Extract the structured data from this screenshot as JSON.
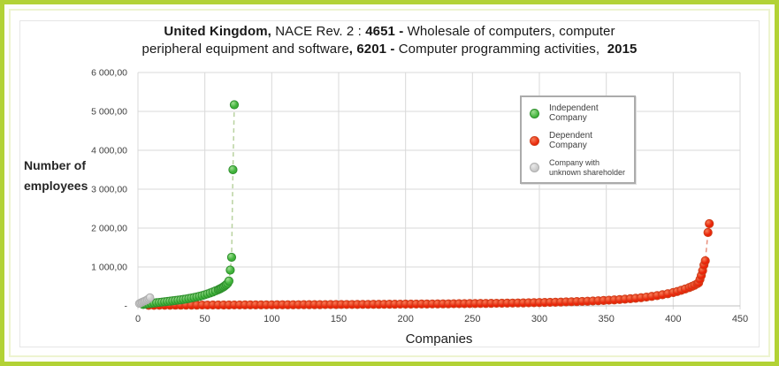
{
  "frame": {
    "border_color": "#b2d235"
  },
  "title": {
    "full": "United Kingdom, NACE Rev. 2 : 4651 - Wholesale of computers, computer peripheral equipment and software, 6201 - Computer programming activities,  2015",
    "line1": [
      {
        "text": "United Kingdom,",
        "bold": true
      },
      {
        "text": " NACE Rev. 2 : ",
        "bold": false
      },
      {
        "text": "4651 - ",
        "bold": true
      },
      {
        "text": "Wholesale of computers, computer",
        "bold": false
      }
    ],
    "line2": [
      {
        "text": "peripheral equipment and software",
        "bold": false
      },
      {
        "text": ", 6201 - ",
        "bold": true
      },
      {
        "text": "Computer programming activities, ",
        "bold": false
      },
      {
        "text": " 2015",
        "bold": true
      }
    ]
  },
  "legend": {
    "items": [
      {
        "label_lines": [
          "Independent Company"
        ],
        "color": "#3fb33a",
        "color_light": "#9fdd92",
        "border": "#2e8f2c",
        "small": false
      },
      {
        "label_lines": [
          "Dependent Company"
        ],
        "color": "#ea2408",
        "color_light": "#f67e58",
        "border": "#cf3f1c",
        "small": false
      },
      {
        "label_lines": [
          "Company with",
          "unknown shareholder"
        ],
        "color": "#c6c6c6",
        "color_light": "#e9e9e9",
        "border": "#aeaeae",
        "small": true
      }
    ]
  },
  "chart_data": {
    "type": "scatter",
    "title": "United Kingdom, NACE Rev. 2 : 4651 - Wholesale of computers, computer peripheral equipment and software, 6201 - Computer programming activities, 2015",
    "xlabel": "Companies",
    "ylabel": "Number of employees",
    "xlim": [
      0,
      450
    ],
    "ylim": [
      0,
      6000
    ],
    "grid": true,
    "legend_position": "top-right-inside",
    "x_ticks": [
      0,
      50,
      100,
      150,
      200,
      250,
      300,
      350,
      400,
      450
    ],
    "y_ticks": [
      {
        "value": 0,
        "label": "-"
      },
      {
        "value": 1000,
        "label": "1 000,00"
      },
      {
        "value": 2000,
        "label": "2 000,00"
      },
      {
        "value": 3000,
        "label": "3 000,00"
      },
      {
        "value": 4000,
        "label": "4 000,00"
      },
      {
        "value": 5000,
        "label": "5 000,00"
      },
      {
        "value": 6000,
        "label": "6 000,00"
      }
    ],
    "series": [
      {
        "name": "Independent Company",
        "fill": "#3fb33a",
        "fill_light": "#9fdd92",
        "stroke": "#2e8f2c",
        "dash_color": "#b9d2a0",
        "marker_radius": 4.6,
        "points": [
          [
            4,
            35
          ],
          [
            6,
            45
          ],
          [
            8,
            55
          ],
          [
            10,
            65
          ],
          [
            12,
            74
          ],
          [
            14,
            82
          ],
          [
            16,
            90
          ],
          [
            18,
            98
          ],
          [
            20,
            106
          ],
          [
            22,
            114
          ],
          [
            24,
            122
          ],
          [
            26,
            130
          ],
          [
            28,
            139
          ],
          [
            30,
            148
          ],
          [
            32,
            157
          ],
          [
            34,
            167
          ],
          [
            36,
            178
          ],
          [
            38,
            190
          ],
          [
            40,
            203
          ],
          [
            42,
            217
          ],
          [
            44,
            232
          ],
          [
            46,
            248
          ],
          [
            48,
            266
          ],
          [
            50,
            286
          ],
          [
            52,
            308
          ],
          [
            54,
            332
          ],
          [
            56,
            358
          ],
          [
            58,
            386
          ],
          [
            60,
            416
          ],
          [
            61,
            432
          ],
          [
            62,
            450
          ],
          [
            63,
            470
          ],
          [
            64,
            492
          ],
          [
            65,
            517
          ],
          [
            66,
            545
          ],
          [
            67,
            578
          ],
          [
            68,
            640
          ],
          [
            69,
            920
          ],
          [
            70,
            1250
          ],
          [
            71,
            3500
          ],
          [
            72,
            5170
          ]
        ],
        "dashed_tail": [
          [
            67,
            578
          ],
          [
            68,
            640
          ],
          [
            69,
            920
          ],
          [
            70,
            1250
          ],
          [
            71,
            3500
          ],
          [
            72,
            5170
          ]
        ]
      },
      {
        "name": "Dependent Company",
        "fill": "#ea2408",
        "fill_light": "#f67e58",
        "stroke": "#cf3f1c",
        "dash_color": "#e8907d",
        "marker_radius": 4.6,
        "points": [
          [
            8,
            14
          ],
          [
            12,
            15
          ],
          [
            16,
            16
          ],
          [
            20,
            16
          ],
          [
            24,
            17
          ],
          [
            28,
            18
          ],
          [
            32,
            18
          ],
          [
            36,
            19
          ],
          [
            40,
            20
          ],
          [
            44,
            20
          ],
          [
            48,
            21
          ],
          [
            52,
            21
          ],
          [
            56,
            22
          ],
          [
            60,
            22
          ],
          [
            64,
            23
          ],
          [
            68,
            23
          ],
          [
            72,
            24
          ],
          [
            76,
            24
          ],
          [
            80,
            25
          ],
          [
            84,
            25
          ],
          [
            88,
            26
          ],
          [
            92,
            26
          ],
          [
            96,
            27
          ],
          [
            100,
            27
          ],
          [
            104,
            28
          ],
          [
            108,
            28
          ],
          [
            112,
            29
          ],
          [
            116,
            29
          ],
          [
            120,
            30
          ],
          [
            124,
            31
          ],
          [
            128,
            31
          ],
          [
            132,
            32
          ],
          [
            136,
            32
          ],
          [
            140,
            33
          ],
          [
            144,
            34
          ],
          [
            148,
            34
          ],
          [
            152,
            35
          ],
          [
            156,
            36
          ],
          [
            160,
            36
          ],
          [
            164,
            37
          ],
          [
            168,
            38
          ],
          [
            172,
            38
          ],
          [
            176,
            39
          ],
          [
            180,
            40
          ],
          [
            184,
            41
          ],
          [
            188,
            42
          ],
          [
            192,
            43
          ],
          [
            196,
            44
          ],
          [
            200,
            45
          ],
          [
            204,
            46
          ],
          [
            208,
            47
          ],
          [
            212,
            48
          ],
          [
            216,
            49
          ],
          [
            220,
            50
          ],
          [
            224,
            51
          ],
          [
            228,
            52
          ],
          [
            232,
            53
          ],
          [
            236,
            55
          ],
          [
            240,
            56
          ],
          [
            244,
            57
          ],
          [
            248,
            59
          ],
          [
            252,
            60
          ],
          [
            256,
            62
          ],
          [
            260,
            63
          ],
          [
            264,
            65
          ],
          [
            268,
            67
          ],
          [
            272,
            69
          ],
          [
            276,
            71
          ],
          [
            280,
            73
          ],
          [
            284,
            75
          ],
          [
            288,
            77
          ],
          [
            292,
            80
          ],
          [
            296,
            82
          ],
          [
            300,
            85
          ],
          [
            304,
            88
          ],
          [
            308,
            91
          ],
          [
            312,
            94
          ],
          [
            316,
            98
          ],
          [
            320,
            102
          ],
          [
            324,
            106
          ],
          [
            328,
            110
          ],
          [
            332,
            115
          ],
          [
            336,
            120
          ],
          [
            340,
            126
          ],
          [
            344,
            132
          ],
          [
            348,
            139
          ],
          [
            352,
            146
          ],
          [
            356,
            154
          ],
          [
            360,
            163
          ],
          [
            364,
            173
          ],
          [
            368,
            184
          ],
          [
            372,
            196
          ],
          [
            376,
            210
          ],
          [
            380,
            226
          ],
          [
            384,
            244
          ],
          [
            388,
            264
          ],
          [
            392,
            287
          ],
          [
            396,
            313
          ],
          [
            400,
            343
          ],
          [
            403,
            370
          ],
          [
            406,
            400
          ],
          [
            409,
            434
          ],
          [
            412,
            472
          ],
          [
            414,
            500
          ],
          [
            416,
            532
          ],
          [
            418,
            570
          ],
          [
            419,
            592
          ],
          [
            420,
            680
          ],
          [
            421,
            780
          ],
          [
            422,
            905
          ],
          [
            423,
            1050
          ],
          [
            424,
            1160
          ],
          [
            426,
            1886
          ],
          [
            427,
            2114
          ]
        ],
        "dashed_tail": [
          [
            421,
            780
          ],
          [
            422,
            905
          ],
          [
            423,
            1050
          ],
          [
            424,
            1160
          ],
          [
            426,
            1886
          ],
          [
            427,
            2114
          ]
        ]
      },
      {
        "name": "Company with unknown shareholder",
        "fill": "#c6c6c6",
        "fill_light": "#e9e9e9",
        "stroke": "#aeaeae",
        "dash_color": null,
        "marker_radius": 4.3,
        "points": [
          [
            1,
            60
          ],
          [
            2,
            78
          ],
          [
            3,
            95
          ],
          [
            4,
            110
          ],
          [
            5,
            125
          ],
          [
            6,
            142
          ],
          [
            7,
            160
          ],
          [
            8,
            185
          ],
          [
            9,
            215
          ]
        ],
        "dashed_tail": null
      }
    ]
  }
}
